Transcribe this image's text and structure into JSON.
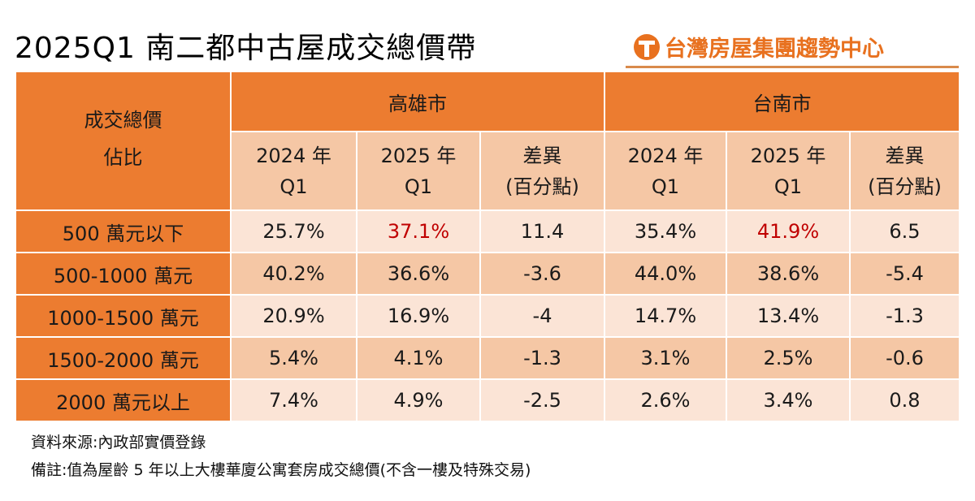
{
  "title": "2025Q1 南二都中古屋成交總價帶",
  "brand": {
    "name": "台灣房屋集團趨勢中心",
    "icon": "t-logo-icon",
    "color": "#e8711f"
  },
  "table": {
    "corner_label_line1": "成交總價",
    "corner_label_line2": "佔比",
    "cities": [
      "高雄市",
      "台南市"
    ],
    "subheaders": [
      {
        "line1": "2024 年",
        "line2": "Q1"
      },
      {
        "line1": "2025 年",
        "line2": "Q1"
      },
      {
        "line1": "差異",
        "line2": "(百分點)"
      },
      {
        "line1": "2024 年",
        "line2": "Q1"
      },
      {
        "line1": "2025 年",
        "line2": "Q1"
      },
      {
        "line1": "差異",
        "line2": "(百分點)"
      }
    ],
    "rows": [
      {
        "label": "500 萬元以下",
        "values": [
          "25.7%",
          "37.1%",
          "11.4",
          "35.4%",
          "41.9%",
          "6.5"
        ],
        "highlight": [
          1,
          4
        ]
      },
      {
        "label": "500-1000 萬元",
        "values": [
          "40.2%",
          "36.6%",
          "-3.6",
          "44.0%",
          "38.6%",
          "-5.4"
        ],
        "highlight": []
      },
      {
        "label": "1000-1500 萬元",
        "values": [
          "20.9%",
          "16.9%",
          "-4",
          "14.7%",
          "13.4%",
          "-1.3"
        ],
        "highlight": []
      },
      {
        "label": "1500-2000 萬元",
        "values": [
          "5.4%",
          "4.1%",
          "-1.3",
          "3.1%",
          "2.5%",
          "-0.6"
        ],
        "highlight": []
      },
      {
        "label": "2000 萬元以上",
        "values": [
          "7.4%",
          "4.9%",
          "-2.5",
          "2.6%",
          "3.4%",
          "0.8"
        ],
        "highlight": []
      }
    ],
    "colors": {
      "header": "#ec7c30",
      "subheader": "#f5c7a5",
      "row_light": "#fbe4d6",
      "row_dark": "#f5c7a5",
      "highlight_text": "#c00000"
    }
  },
  "notes": {
    "source": "資料來源:內政部實價登錄",
    "remark": "備註:值為屋齡 5 年以上大樓華廈公寓套房成交總價(不含一樓及特殊交易)"
  }
}
